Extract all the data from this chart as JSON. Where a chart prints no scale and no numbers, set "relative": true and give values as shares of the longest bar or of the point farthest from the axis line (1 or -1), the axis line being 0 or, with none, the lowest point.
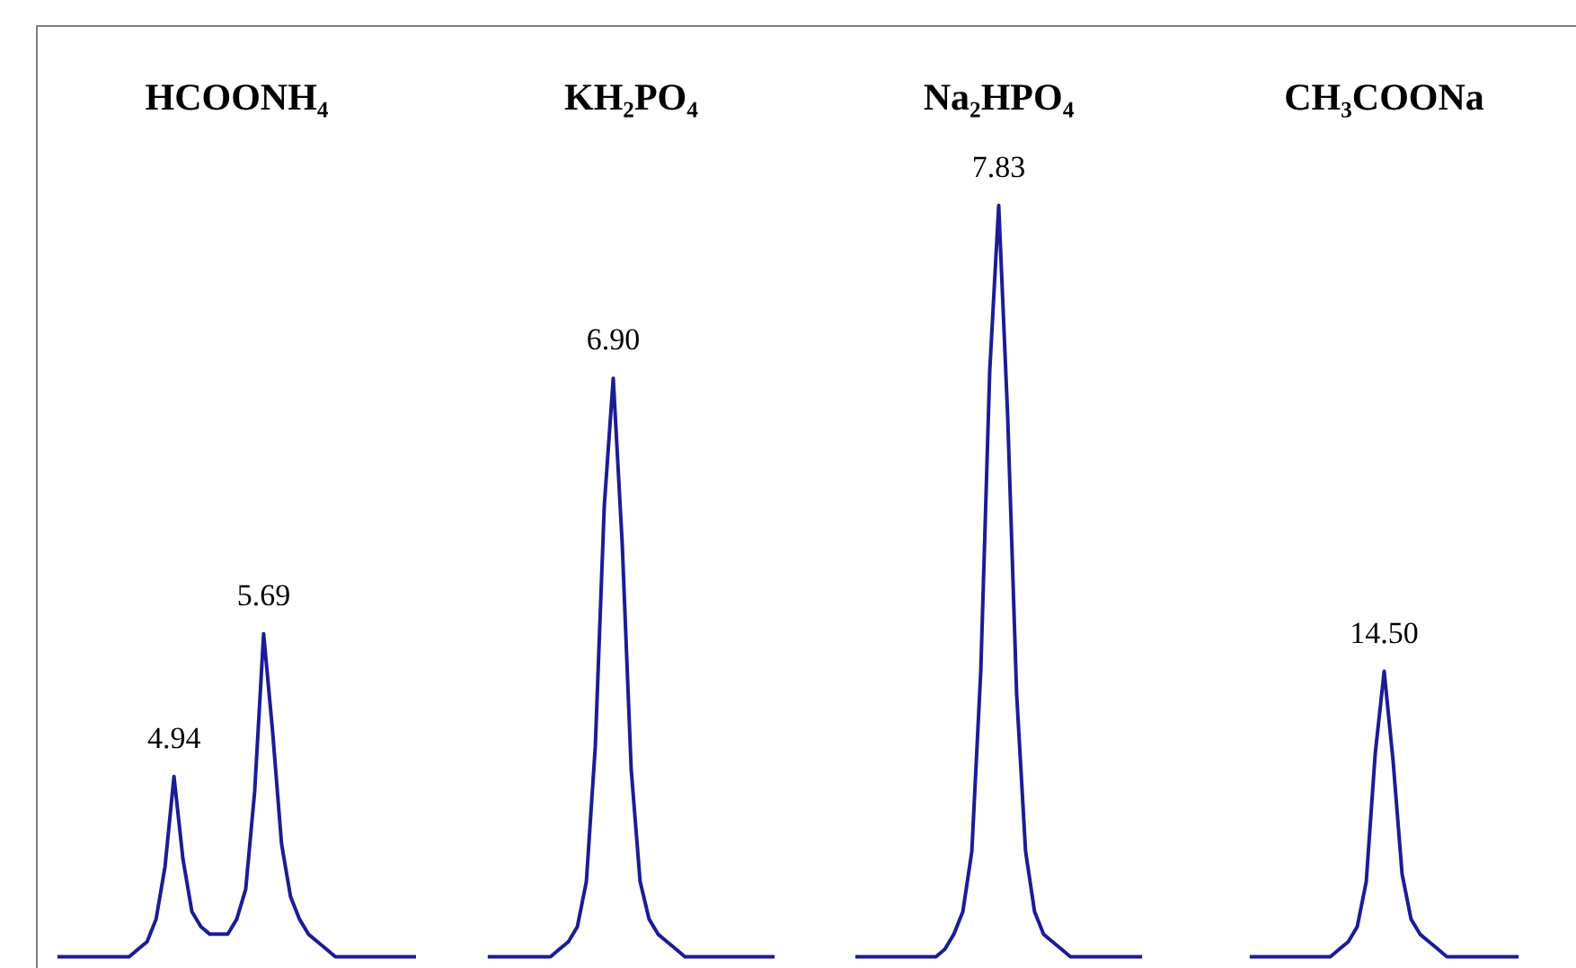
{
  "chart_data": {
    "type": "line",
    "relative": true,
    "categories": [
      null,
      null,
      null,
      null,
      null,
      null,
      null,
      null,
      null,
      null,
      null,
      null,
      null,
      null,
      null,
      null,
      null,
      null,
      null,
      null,
      null,
      null,
      null,
      null,
      null,
      null,
      null,
      null,
      null,
      null,
      null,
      null,
      null,
      null,
      null,
      null,
      null,
      null,
      null,
      null,
      null,
      null,
      null,
      null,
      null,
      null,
      null,
      null,
      null,
      null,
      null,
      null,
      null,
      null,
      null,
      null,
      null,
      null,
      null,
      null,
      null,
      null,
      null,
      null,
      null,
      null,
      null,
      null,
      null,
      null,
      null,
      null,
      null,
      null,
      null,
      null,
      null,
      null,
      null,
      null,
      null,
      null,
      null,
      null,
      null,
      null,
      null,
      null,
      null,
      null,
      null,
      null,
      null,
      null,
      null,
      null,
      null,
      null,
      null,
      null,
      null,
      null,
      null,
      null,
      null,
      null,
      null,
      null,
      null,
      null,
      null,
      null,
      null,
      null,
      null,
      null,
      null,
      null,
      null,
      null,
      null,
      null,
      null,
      null,
      null,
      null,
      null,
      null,
      null,
      null,
      null,
      null,
      null,
      null,
      null,
      null,
      null,
      null,
      null,
      null,
      null,
      null,
      null,
      null,
      null,
      null,
      null,
      null,
      null,
      null,
      null,
      null,
      null,
      null,
      null,
      null,
      null,
      null,
      null,
      null,
      null,
      null,
      null,
      null
    ],
    "series": [
      {
        "color": "#1c1c96",
        "values": [
          0,
          0,
          0,
          0,
          0,
          0,
          0,
          0,
          0,
          0.01,
          0.02,
          0.05,
          0.12,
          0.24,
          0.13,
          0.06,
          0.04,
          0.03,
          0.03,
          0.03,
          0.05,
          0.09,
          0.22,
          0.43,
          0.3,
          0.15,
          0.08,
          0.05,
          0.03,
          0.02,
          0.01,
          0,
          0,
          0,
          0,
          0,
          0,
          0,
          0,
          0,
          0,
          null,
          null,
          null,
          null,
          null,
          null,
          null,
          null,
          null,
          null,
          null,
          null,
          null,
          null,
          null,
          null,
          null,
          null,
          null,
          null,
          null,
          null,
          null,
          null,
          null,
          null,
          null,
          null,
          null,
          null,
          null,
          null,
          null,
          null,
          null,
          null,
          null,
          null,
          null,
          null,
          null,
          null,
          null,
          null,
          null,
          null,
          null,
          null,
          null,
          null,
          null,
          null,
          null,
          null,
          null,
          null,
          null,
          null,
          null,
          null,
          null,
          null,
          null,
          null,
          null,
          null,
          null,
          null,
          null,
          null,
          null,
          null,
          null,
          null,
          null,
          null,
          null,
          null,
          null,
          null,
          null,
          null,
          null,
          null,
          null,
          null,
          null,
          null,
          null,
          null,
          null,
          null,
          null,
          null,
          null,
          null,
          null,
          null,
          null,
          null,
          null,
          null,
          null,
          null,
          null,
          null,
          null,
          null,
          null,
          null,
          null,
          null,
          null,
          null,
          null,
          null,
          null,
          null,
          null,
          null,
          null,
          null,
          null
        ]
      },
      {
        "color": "#1c1c96",
        "values": [
          null,
          null,
          null,
          null,
          null,
          null,
          null,
          null,
          null,
          null,
          null,
          null,
          null,
          null,
          null,
          null,
          null,
          null,
          null,
          null,
          null,
          null,
          null,
          null,
          null,
          null,
          null,
          null,
          null,
          null,
          null,
          null,
          null,
          null,
          null,
          null,
          null,
          null,
          null,
          null,
          null,
          null,
          null,
          null,
          null,
          null,
          null,
          null,
          0,
          0,
          0,
          0,
          0,
          0,
          0,
          0,
          0.01,
          0.02,
          0.04,
          0.1,
          0.28,
          0.6,
          0.77,
          0.55,
          0.25,
          0.1,
          0.05,
          0.03,
          0.02,
          0.01,
          0,
          0,
          0,
          0,
          0,
          0,
          0,
          0,
          0,
          0,
          0,
          null,
          null,
          null,
          null,
          null,
          null,
          null,
          null,
          null,
          null,
          null,
          null,
          null,
          null,
          null,
          null,
          null,
          null,
          null,
          null,
          null,
          null,
          null,
          null,
          null,
          null,
          null,
          null,
          null,
          null,
          null,
          null,
          null,
          null,
          null,
          null,
          null,
          null,
          null,
          null,
          null,
          null,
          null,
          null,
          null,
          null,
          null,
          null,
          null,
          null,
          null,
          null,
          null,
          null,
          null,
          null,
          null,
          null,
          null,
          null,
          null,
          null,
          null,
          null,
          null,
          null,
          null,
          null,
          null,
          null,
          null,
          null,
          null,
          null,
          null,
          null,
          null,
          null,
          null,
          null,
          null,
          null,
          null
        ]
      },
      {
        "color": "#1c1c96",
        "values": [
          null,
          null,
          null,
          null,
          null,
          null,
          null,
          null,
          null,
          null,
          null,
          null,
          null,
          null,
          null,
          null,
          null,
          null,
          null,
          null,
          null,
          null,
          null,
          null,
          null,
          null,
          null,
          null,
          null,
          null,
          null,
          null,
          null,
          null,
          null,
          null,
          null,
          null,
          null,
          null,
          null,
          null,
          null,
          null,
          null,
          null,
          null,
          null,
          null,
          null,
          null,
          null,
          null,
          null,
          null,
          null,
          null,
          null,
          null,
          null,
          null,
          null,
          null,
          null,
          null,
          null,
          null,
          null,
          null,
          null,
          null,
          null,
          null,
          null,
          null,
          null,
          null,
          null,
          null,
          null,
          null,
          null,
          null,
          null,
          null,
          null,
          null,
          null,
          null,
          0,
          0,
          0,
          0,
          0,
          0,
          0,
          0,
          0,
          0,
          0.01,
          0.03,
          0.06,
          0.14,
          0.38,
          0.78,
          1,
          0.72,
          0.35,
          0.14,
          0.06,
          0.03,
          0.02,
          0.01,
          0,
          0,
          0,
          0,
          0,
          0,
          0,
          0,
          0,
          null,
          null,
          null,
          null,
          null,
          null,
          null,
          null,
          null,
          null,
          null,
          null,
          null,
          null,
          null,
          null,
          null,
          null,
          null,
          null,
          null,
          null,
          null,
          null,
          null,
          null,
          null,
          null,
          null,
          null,
          null,
          null,
          null,
          null,
          null,
          null,
          null,
          null,
          null,
          null,
          null,
          null
        ]
      },
      {
        "color": "#1c1c96",
        "values": [
          null,
          null,
          null,
          null,
          null,
          null,
          null,
          null,
          null,
          null,
          null,
          null,
          null,
          null,
          null,
          null,
          null,
          null,
          null,
          null,
          null,
          null,
          null,
          null,
          null,
          null,
          null,
          null,
          null,
          null,
          null,
          null,
          null,
          null,
          null,
          null,
          null,
          null,
          null,
          null,
          null,
          null,
          null,
          null,
          null,
          null,
          null,
          null,
          null,
          null,
          null,
          null,
          null,
          null,
          null,
          null,
          null,
          null,
          null,
          null,
          null,
          null,
          null,
          null,
          null,
          null,
          null,
          null,
          null,
          null,
          null,
          null,
          null,
          null,
          null,
          null,
          null,
          null,
          null,
          null,
          null,
          null,
          null,
          null,
          null,
          null,
          null,
          null,
          null,
          null,
          null,
          null,
          null,
          null,
          null,
          null,
          null,
          null,
          null,
          null,
          null,
          null,
          null,
          null,
          null,
          null,
          null,
          null,
          null,
          null,
          null,
          null,
          null,
          null,
          null,
          null,
          null,
          null,
          null,
          null,
          null,
          null,
          null,
          null,
          null,
          null,
          null,
          null,
          null,
          null,
          null,
          null,
          null,
          0,
          0,
          0,
          0,
          0,
          0,
          0,
          0,
          0,
          0,
          0.01,
          0.02,
          0.04,
          0.1,
          0.27,
          0.38,
          0.26,
          0.11,
          0.05,
          0.03,
          0.02,
          0.01,
          0,
          0,
          0,
          0,
          0,
          0,
          0,
          0,
          0
        ]
      }
    ],
    "annotations": [
      "HCOONH₄",
      "KH₂PO₄",
      "Na₂HPO₄",
      "CH₃COONa",
      "4.94",
      "5.69",
      "6.90",
      "7.83",
      "14.50"
    ]
  }
}
